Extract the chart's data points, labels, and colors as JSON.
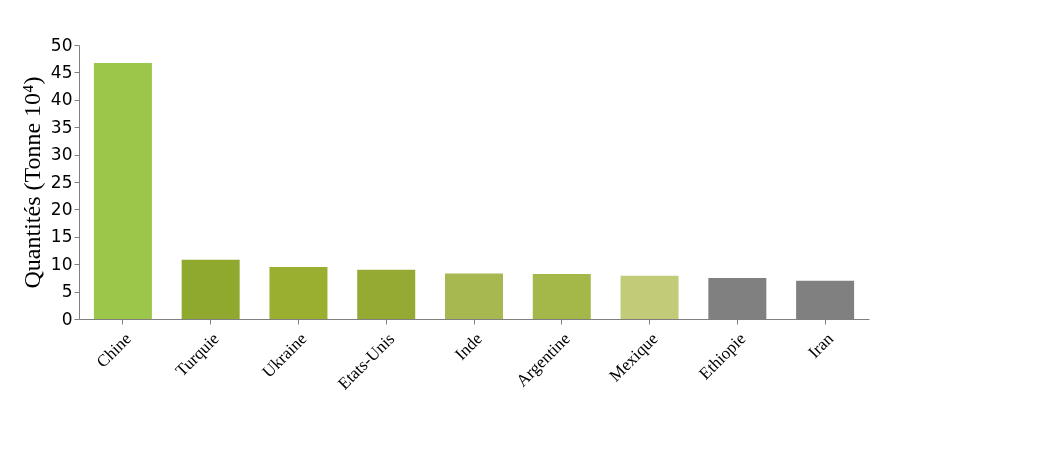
{
  "chart_data": {
    "type": "bar",
    "ylabel": "Quantités (Tonne 10⁴)",
    "categories": [
      "Chine",
      "Turquie",
      "Ukraine",
      "Etats-Unis",
      "Inde",
      "Argentine",
      "Mexique",
      "Ethiopie",
      "Iran"
    ],
    "values": [
      46.7,
      10.8,
      9.5,
      9.0,
      8.3,
      8.2,
      7.9,
      7.5,
      7.0
    ],
    "colors": [
      "#9cc64a",
      "#8fa82e",
      "#9aae30",
      "#94aa32",
      "#a8b850",
      "#a4b84a",
      "#c2cc78",
      "#808080",
      "#808080"
    ],
    "ylim": [
      0,
      50
    ],
    "yticks": [
      0,
      5,
      10,
      15,
      20,
      25,
      30,
      35,
      40,
      45,
      50
    ],
    "grid": false
  }
}
